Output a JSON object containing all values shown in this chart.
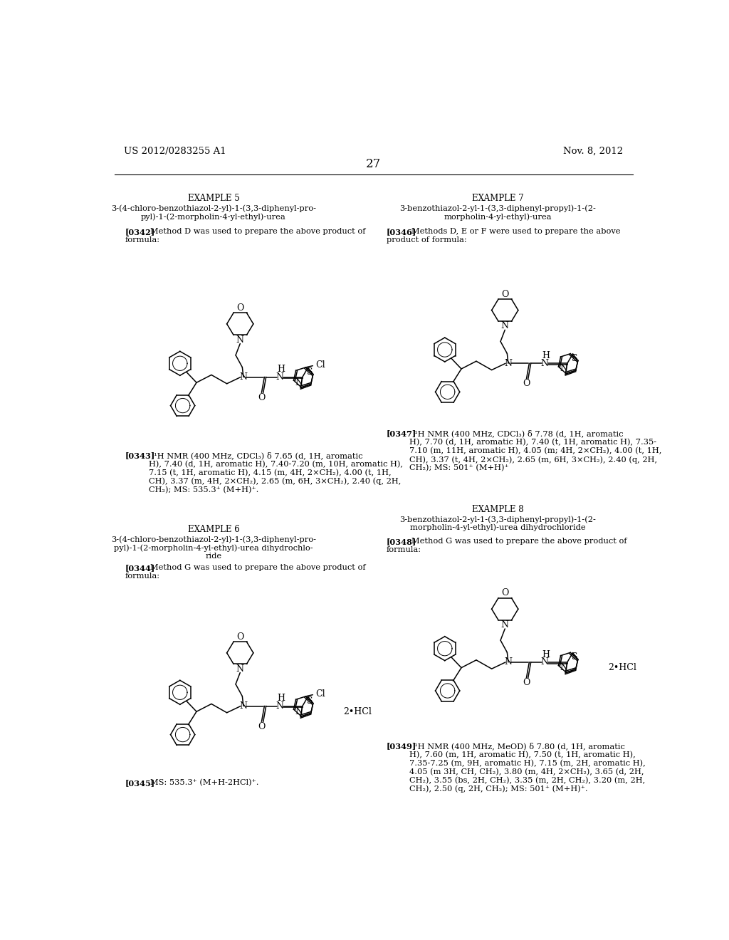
{
  "background_color": "#ffffff",
  "header_left": "US 2012/0283255 A1",
  "header_right": "Nov. 8, 2012",
  "page_number": "27"
}
